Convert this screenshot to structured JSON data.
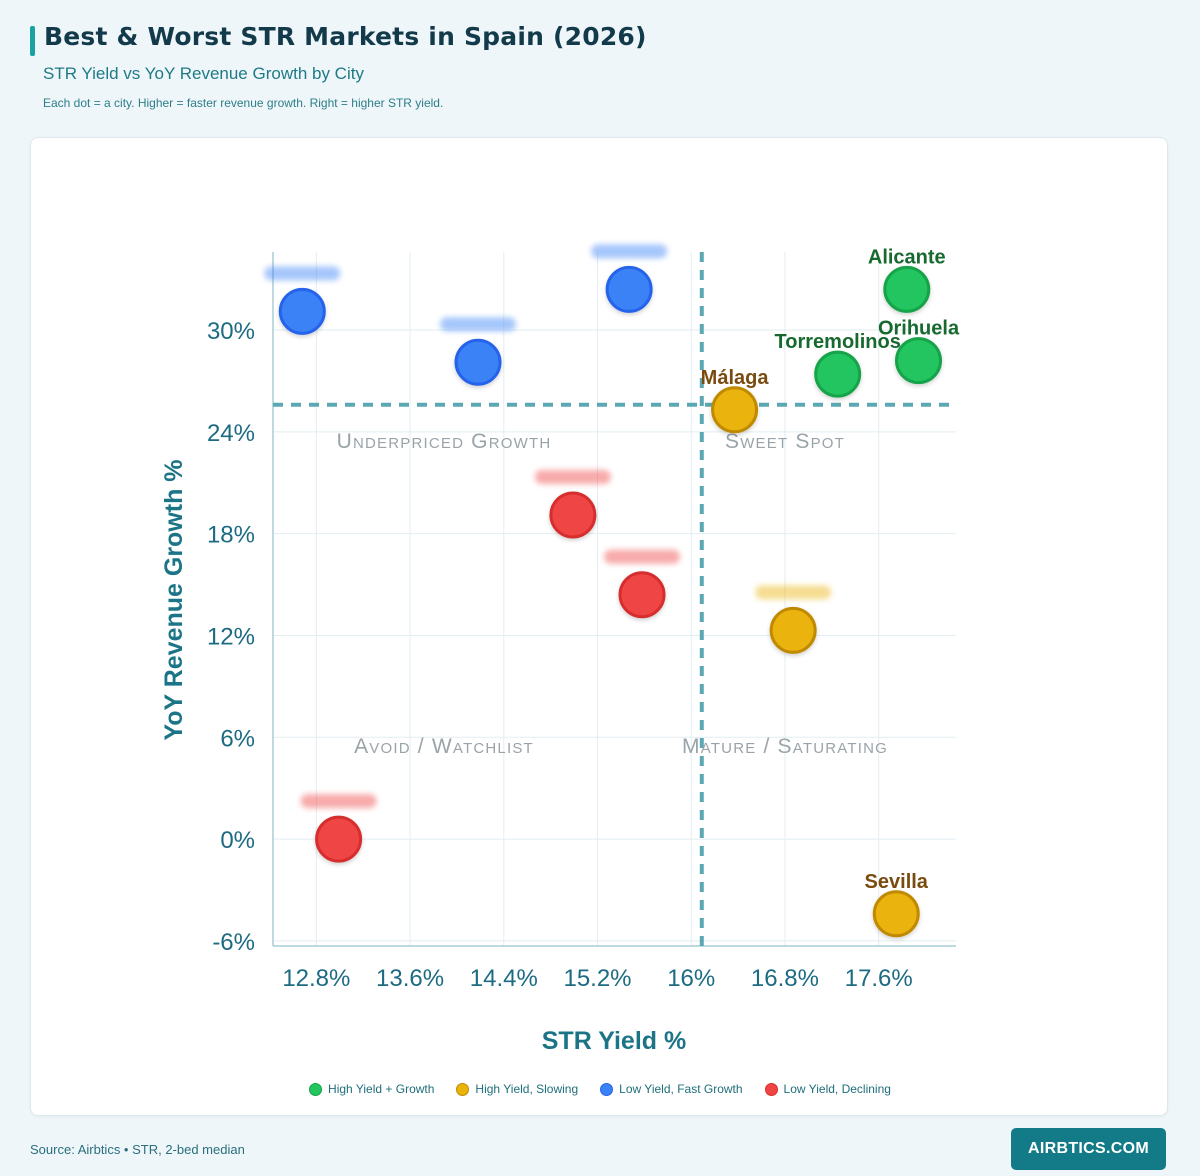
{
  "header": {
    "title": "Best & Worst STR Markets in Spain (2026)",
    "subtitle": "STR Yield vs YoY Revenue Growth by City",
    "note": "Each dot = a city. Higher = faster revenue growth. Right = higher STR yield."
  },
  "chart_data": {
    "type": "scatter",
    "xlabel": "STR Yield %",
    "ylabel": "YoY Revenue Growth %",
    "x_ticks": [
      "12.8%",
      "13.6%",
      "14.4%",
      "15.2%",
      "16%",
      "16.8%",
      "17.6%"
    ],
    "y_ticks": [
      "30%",
      "24%",
      "18%",
      "12%",
      "6%",
      "0%",
      "-6%"
    ],
    "xlim": [
      12.43,
      18.26
    ],
    "ylim": [
      -6.3,
      34.6
    ],
    "grid": true,
    "thresholds": {
      "x": 16.09,
      "y": 25.6
    },
    "quadrant_labels": {
      "top_left": "Underpriced Growth",
      "top_right": "Sweet Spot",
      "bottom_left": "Avoid / Watchlist",
      "bottom_right": "Mature / Saturating"
    },
    "series": [
      {
        "name": "High Yield + Growth",
        "color": "#22c55e",
        "stroke": "#16a34a",
        "label_color": "#176a2f",
        "points": [
          {
            "label": "Alicante",
            "x": 17.84,
            "y": 32.4,
            "label_visible": true
          },
          {
            "label": "Orihuela",
            "x": 17.94,
            "y": 28.2,
            "label_visible": true
          },
          {
            "label": "Torremolinos",
            "x": 17.25,
            "y": 27.4,
            "label_visible": true
          }
        ]
      },
      {
        "name": "High Yield, Slowing",
        "color": "#eab308",
        "stroke": "#c08a06",
        "label_color": "#7a4b0e",
        "points": [
          {
            "label": "Málaga",
            "x": 16.37,
            "y": 25.3,
            "label_visible": true
          },
          {
            "label": "Sevilla",
            "x": 17.75,
            "y": -4.4,
            "label_visible": true
          },
          {
            "label": "",
            "x": 16.87,
            "y": 12.3,
            "label_visible": false
          }
        ]
      },
      {
        "name": "Low Yield, Fast Growth",
        "color": "#3b82f6",
        "stroke": "#2563eb",
        "label_color": "#2563eb",
        "points": [
          {
            "label": "",
            "x": 12.68,
            "y": 31.1,
            "label_visible": false
          },
          {
            "label": "",
            "x": 14.18,
            "y": 28.1,
            "label_visible": false
          },
          {
            "label": "",
            "x": 15.47,
            "y": 32.4,
            "label_visible": false
          }
        ]
      },
      {
        "name": "Low Yield, Declining",
        "color": "#ef4444",
        "stroke": "#d62f2f",
        "label_color": "#d62f2f",
        "points": [
          {
            "label": "",
            "x": 14.99,
            "y": 19.1,
            "label_visible": false
          },
          {
            "label": "",
            "x": 15.58,
            "y": 14.4,
            "label_visible": false
          },
          {
            "label": "",
            "x": 12.99,
            "y": 0.0,
            "label_visible": false
          }
        ]
      }
    ]
  },
  "footer": {
    "source": "Source: Airbtics • STR, 2-bed median",
    "brand": "AIRBTICS.COM"
  }
}
